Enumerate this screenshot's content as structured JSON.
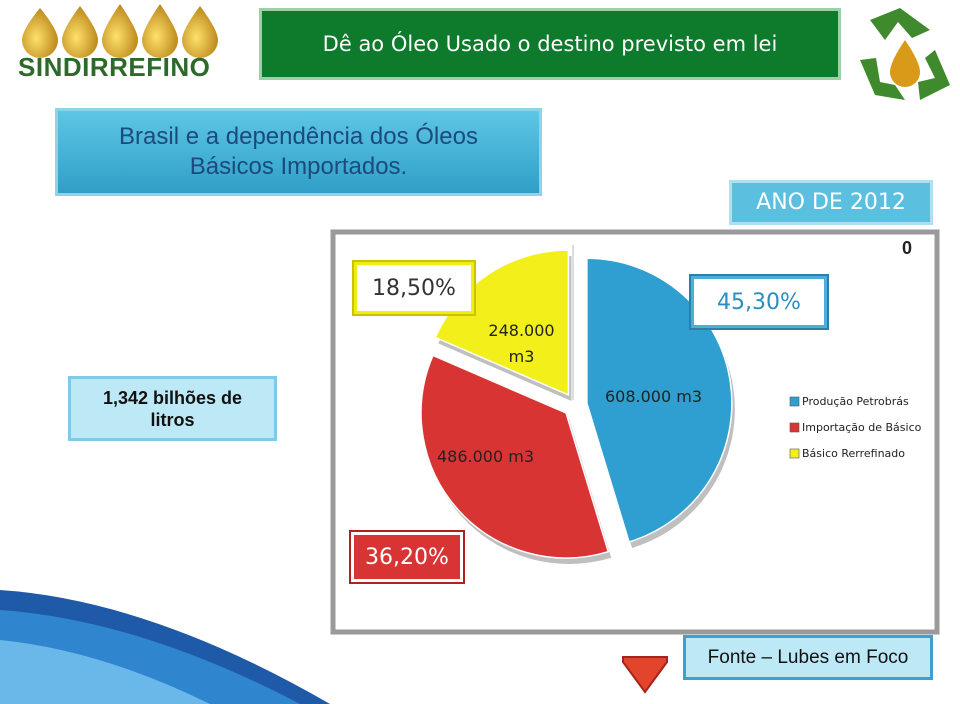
{
  "header": {
    "title": "Dê ao Óleo Usado  o destino previsto em lei",
    "logo": "SINDIRREFINO"
  },
  "subtitle": "Brasil  e  a dependência dos  Óleos Básicos   Importados.",
  "year_label": "ANO DE 2012",
  "total_label": "1,342 bilhões de litros",
  "corner_label": "0",
  "source": "Fonte – Lubes em Foco",
  "chart_data": {
    "type": "pie",
    "categories": [
      "Produção Petrobrás",
      "Importação de Básico",
      "Básico Rerrefinado"
    ],
    "values": [
      45.3,
      36.2,
      18.5
    ],
    "value_labels": [
      "45,30%",
      "36,20%",
      "18,50%"
    ],
    "volume_labels": [
      "608.000 m3",
      "486.000 m3",
      "248.000 m3"
    ],
    "colors": [
      "#2e9fd0",
      "#d93434",
      "#f2ef1a"
    ],
    "legend": "right"
  }
}
